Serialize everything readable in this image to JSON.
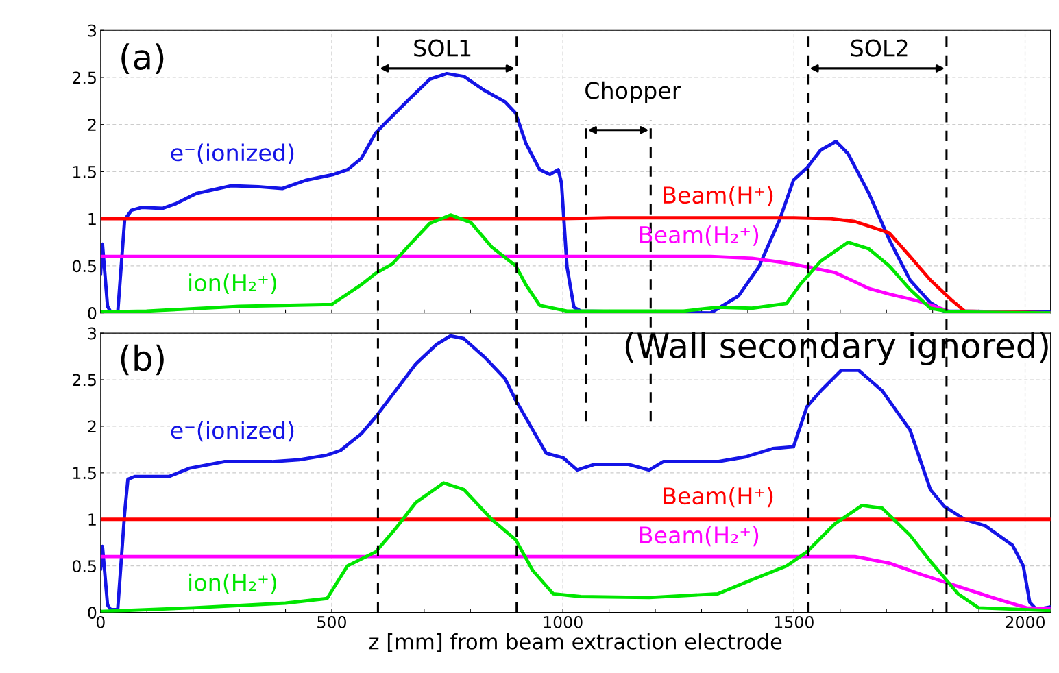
{
  "chart_data": [
    {
      "type": "line",
      "tick_labels": "y",
      "grid": true,
      "legend": false,
      "xlim": [
        0,
        2055
      ],
      "ylim": [
        0,
        3
      ],
      "xticks": [
        0,
        {
          "value": 100,
          "label": null
        },
        {
          "value": 200,
          "label": null
        },
        {
          "value": 300,
          "label": null
        },
        {
          "value": 400,
          "label": null
        },
        500,
        {
          "value": 600,
          "label": null
        },
        {
          "value": 700,
          "label": null
        },
        {
          "value": 800,
          "label": null
        },
        {
          "value": 900,
          "label": null
        },
        1000,
        {
          "value": 1100,
          "label": null
        },
        {
          "value": 1200,
          "label": null
        },
        {
          "value": 1300,
          "label": null
        },
        {
          "value": 1400,
          "label": null
        },
        1500,
        {
          "value": 1600,
          "label": null
        },
        {
          "value": 1700,
          "label": null
        },
        {
          "value": 1800,
          "label": null
        },
        {
          "value": 1900,
          "label": null
        },
        2000
      ],
      "yticks": [
        0,
        0.5,
        1,
        1.5,
        2,
        2.5,
        3
      ],
      "series": [
        {
          "name": "e⁻(ionized)",
          "color": "#1414e6",
          "x": [
            0,
            4,
            15,
            22,
            37,
            52,
            67,
            89,
            134,
            163,
            208,
            282,
            341,
            393,
            445,
            504,
            534,
            564,
            595,
            623,
            668,
            712,
            749,
            786,
            831,
            875,
            898,
            920,
            950,
            972,
            990,
            997,
            1009,
            1024,
            1039,
            1320,
            1380,
            1424,
            1469,
            1499,
            1528,
            1558,
            1591,
            1617,
            1662,
            1706,
            1751,
            1795,
            1825,
            2055
          ],
          "values": [
            0.42,
            0.73,
            0.07,
            0.01,
            0,
            0.99,
            1.09,
            1.12,
            1.11,
            1.16,
            1.27,
            1.35,
            1.34,
            1.32,
            1.41,
            1.47,
            1.52,
            1.64,
            1.91,
            2.05,
            2.27,
            2.48,
            2.54,
            2.51,
            2.36,
            2.24,
            2.12,
            1.8,
            1.52,
            1.47,
            1.52,
            1.38,
            0.49,
            0.06,
            0.02,
            0,
            0.18,
            0.49,
            0.99,
            1.41,
            1.54,
            1.73,
            1.82,
            1.69,
            1.27,
            0.78,
            0.35,
            0.11,
            0.02,
            0.01
          ]
        },
        {
          "name": "Beam(H⁺)",
          "color": "#ff0000",
          "x": [
            0,
            1000,
            1100,
            1500,
            1580,
            1632,
            1706,
            1751,
            1795,
            1840,
            1869,
            2055
          ],
          "values": [
            1.0,
            1.0,
            1.01,
            1.01,
            1.0,
            0.97,
            0.85,
            0.6,
            0.35,
            0.14,
            0.02,
            0
          ]
        },
        {
          "name": "Beam(H₂⁺)",
          "color": "#ff00ff",
          "x": [
            0,
            1320,
            1409,
            1484,
            1528,
            1588,
            1632,
            1662,
            1706,
            1766,
            1810,
            1840,
            2055
          ],
          "values": [
            0.6,
            0.6,
            0.58,
            0.53,
            0.49,
            0.43,
            0.33,
            0.26,
            0.2,
            0.13,
            0.06,
            0.01,
            0
          ]
        },
        {
          "name": "ion(H₂⁺)",
          "color": "#00e600",
          "x": [
            0,
            100,
            300,
            500,
            564,
            595,
            631,
            668,
            712,
            757,
            801,
            846,
            898,
            920,
            950,
            1009,
            1261,
            1335,
            1409,
            1484,
            1513,
            1558,
            1617,
            1662,
            1706,
            1751,
            1795,
            1840,
            2055
          ],
          "values": [
            0.01,
            0.02,
            0.07,
            0.09,
            0.3,
            0.42,
            0.52,
            0.72,
            0.95,
            1.04,
            0.96,
            0.7,
            0.5,
            0.3,
            0.08,
            0.02,
            0.02,
            0.06,
            0.05,
            0.1,
            0.3,
            0.55,
            0.75,
            0.68,
            0.5,
            0.25,
            0.05,
            0.01,
            0
          ]
        }
      ],
      "ref_lines": [
        {
          "axis": "x",
          "value": 600,
          "label": null,
          "color": "#000000",
          "line_style": "dashed"
        },
        {
          "axis": "x",
          "value": 900,
          "label": null,
          "color": "#000000",
          "line_style": "dashed"
        },
        {
          "axis": "x",
          "value": 1050,
          "label": null,
          "color": "#000000",
          "line_style": "dashed"
        },
        {
          "axis": "x",
          "value": 1190,
          "label": null,
          "color": "#000000",
          "line_style": "dashed"
        },
        {
          "axis": "x",
          "value": 1530,
          "label": null,
          "color": "#000000",
          "line_style": "dashed"
        },
        {
          "axis": "x",
          "value": 1830,
          "label": null,
          "color": "#000000",
          "line_style": "dashed"
        }
      ],
      "annotations": [
        "(a)",
        "SOL1",
        "Chopper",
        "SOL2"
      ]
    },
    {
      "type": "line",
      "grid": true,
      "legend": false,
      "xlim": [
        0,
        2055
      ],
      "ylim": [
        0,
        3
      ],
      "xlabel": "z [mm] from beam extraction electrode",
      "xticks": [
        0,
        {
          "value": 100,
          "label": null
        },
        {
          "value": 200,
          "label": null
        },
        {
          "value": 300,
          "label": null
        },
        {
          "value": 400,
          "label": null
        },
        500,
        {
          "value": 600,
          "label": null
        },
        {
          "value": 700,
          "label": null
        },
        {
          "value": 800,
          "label": null
        },
        {
          "value": 900,
          "label": null
        },
        1000,
        {
          "value": 1100,
          "label": null
        },
        {
          "value": 1200,
          "label": null
        },
        {
          "value": 1300,
          "label": null
        },
        {
          "value": 1400,
          "label": null
        },
        1500,
        {
          "value": 1600,
          "label": null
        },
        {
          "value": 1700,
          "label": null
        },
        {
          "value": 1800,
          "label": null
        },
        {
          "value": 1900,
          "label": null
        },
        2000
      ],
      "yticks": [
        0,
        0.5,
        1,
        1.5,
        2,
        2.5,
        3
      ],
      "series": [
        {
          "name": "e⁻(ionized)",
          "color": "#1414e6",
          "x": [
            0,
            4,
            15,
            22,
            37,
            52,
            59,
            74,
            148,
            193,
            267,
            371,
            430,
            490,
            519,
            564,
            595,
            638,
            682,
            727,
            757,
            786,
            831,
            875,
            898,
            935,
            964,
            1001,
            1031,
            1068,
            1142,
            1187,
            1217,
            1335,
            1395,
            1454,
            1499,
            1528,
            1558,
            1602,
            1640,
            1691,
            1751,
            1795,
            1825,
            1869,
            1914,
            1973,
            1996,
            2010,
            2025,
            2055
          ],
          "values": [
            0.47,
            0.71,
            0.08,
            0.03,
            0.03,
            1.07,
            1.43,
            1.46,
            1.46,
            1.55,
            1.62,
            1.62,
            1.64,
            1.69,
            1.74,
            1.92,
            2.1,
            2.38,
            2.67,
            2.88,
            2.97,
            2.94,
            2.74,
            2.51,
            2.28,
            1.96,
            1.71,
            1.66,
            1.53,
            1.59,
            1.59,
            1.53,
            1.62,
            1.62,
            1.67,
            1.76,
            1.78,
            2.21,
            2.38,
            2.6,
            2.6,
            2.38,
            1.96,
            1.32,
            1.14,
            1.0,
            0.93,
            0.72,
            0.5,
            0.11,
            0.03,
            0.06
          ]
        },
        {
          "name": "Beam(H⁺)",
          "color": "#ff0000",
          "x": [
            0,
            2055
          ],
          "values": [
            1.0,
            1.0
          ]
        },
        {
          "name": "Beam(H₂⁺)",
          "color": "#ff00ff",
          "x": [
            0,
            1632,
            1706,
            1780,
            1855,
            1929,
            2003,
            2055
          ],
          "values": [
            0.6,
            0.6,
            0.53,
            0.4,
            0.28,
            0.16,
            0.05,
            0.04
          ]
        },
        {
          "name": "ion(H₂⁺)",
          "color": "#00e600",
          "x": [
            0,
            200,
            400,
            490,
            534,
            595,
            638,
            682,
            742,
            786,
            846,
            898,
            935,
            979,
            1039,
            1187,
            1335,
            1409,
            1484,
            1528,
            1588,
            1647,
            1691,
            1751,
            1795,
            1855,
            1899,
            2055
          ],
          "values": [
            0.01,
            0.05,
            0.1,
            0.15,
            0.5,
            0.65,
            0.9,
            1.18,
            1.39,
            1.32,
            1.0,
            0.78,
            0.45,
            0.2,
            0.17,
            0.16,
            0.2,
            0.35,
            0.5,
            0.65,
            0.95,
            1.15,
            1.12,
            0.83,
            0.55,
            0.2,
            0.05,
            0.02
          ]
        }
      ],
      "annotations": [
        "(b)",
        "(Wall secondary ignored)"
      ]
    }
  ]
}
